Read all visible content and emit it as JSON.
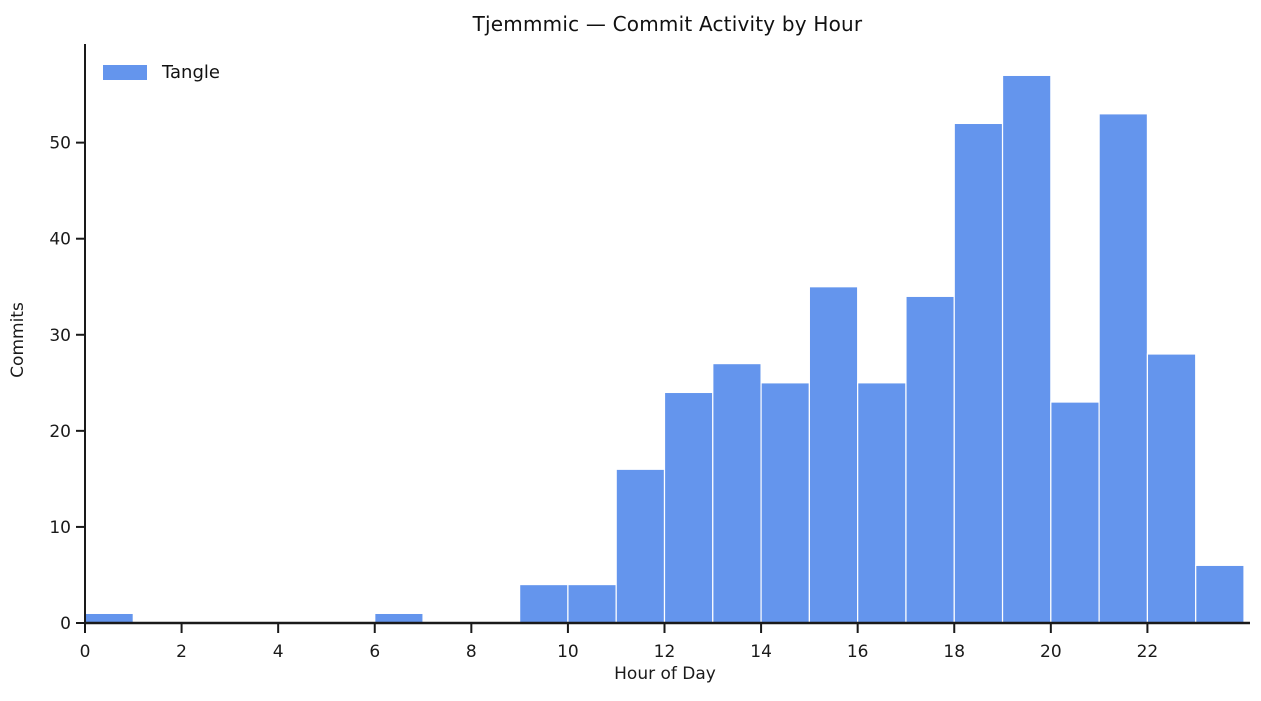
{
  "chart_data": {
    "type": "bar",
    "title": "Tjemmmic — Commit Activity by Hour",
    "xlabel": "Hour of Day",
    "ylabel": "Commits",
    "categories": [
      0,
      1,
      2,
      3,
      4,
      5,
      6,
      7,
      8,
      9,
      10,
      11,
      12,
      13,
      14,
      15,
      16,
      17,
      18,
      19,
      20,
      21,
      22,
      23
    ],
    "series": [
      {
        "name": "Tangle",
        "values": [
          1,
          0,
          0,
          0,
          0,
          0,
          1,
          0,
          0,
          4,
          4,
          16,
          24,
          27,
          25,
          35,
          25,
          34,
          52,
          57,
          23,
          53,
          28,
          6
        ]
      }
    ],
    "bin_width": 1,
    "xticks": [
      0,
      2,
      4,
      6,
      8,
      10,
      12,
      14,
      16,
      18,
      20,
      22
    ],
    "yticks": [
      0,
      10,
      20,
      30,
      40,
      50
    ],
    "xlim": [
      0,
      24
    ],
    "ylim": [
      0,
      59.85
    ],
    "grid": false,
    "legend_position": "upper left",
    "legend_frame": false,
    "bar_color": "#6495ED",
    "bar_edge_color": "#ffffff",
    "axis_color": "#1a1a1a",
    "text_color": "#1a1a1a"
  }
}
